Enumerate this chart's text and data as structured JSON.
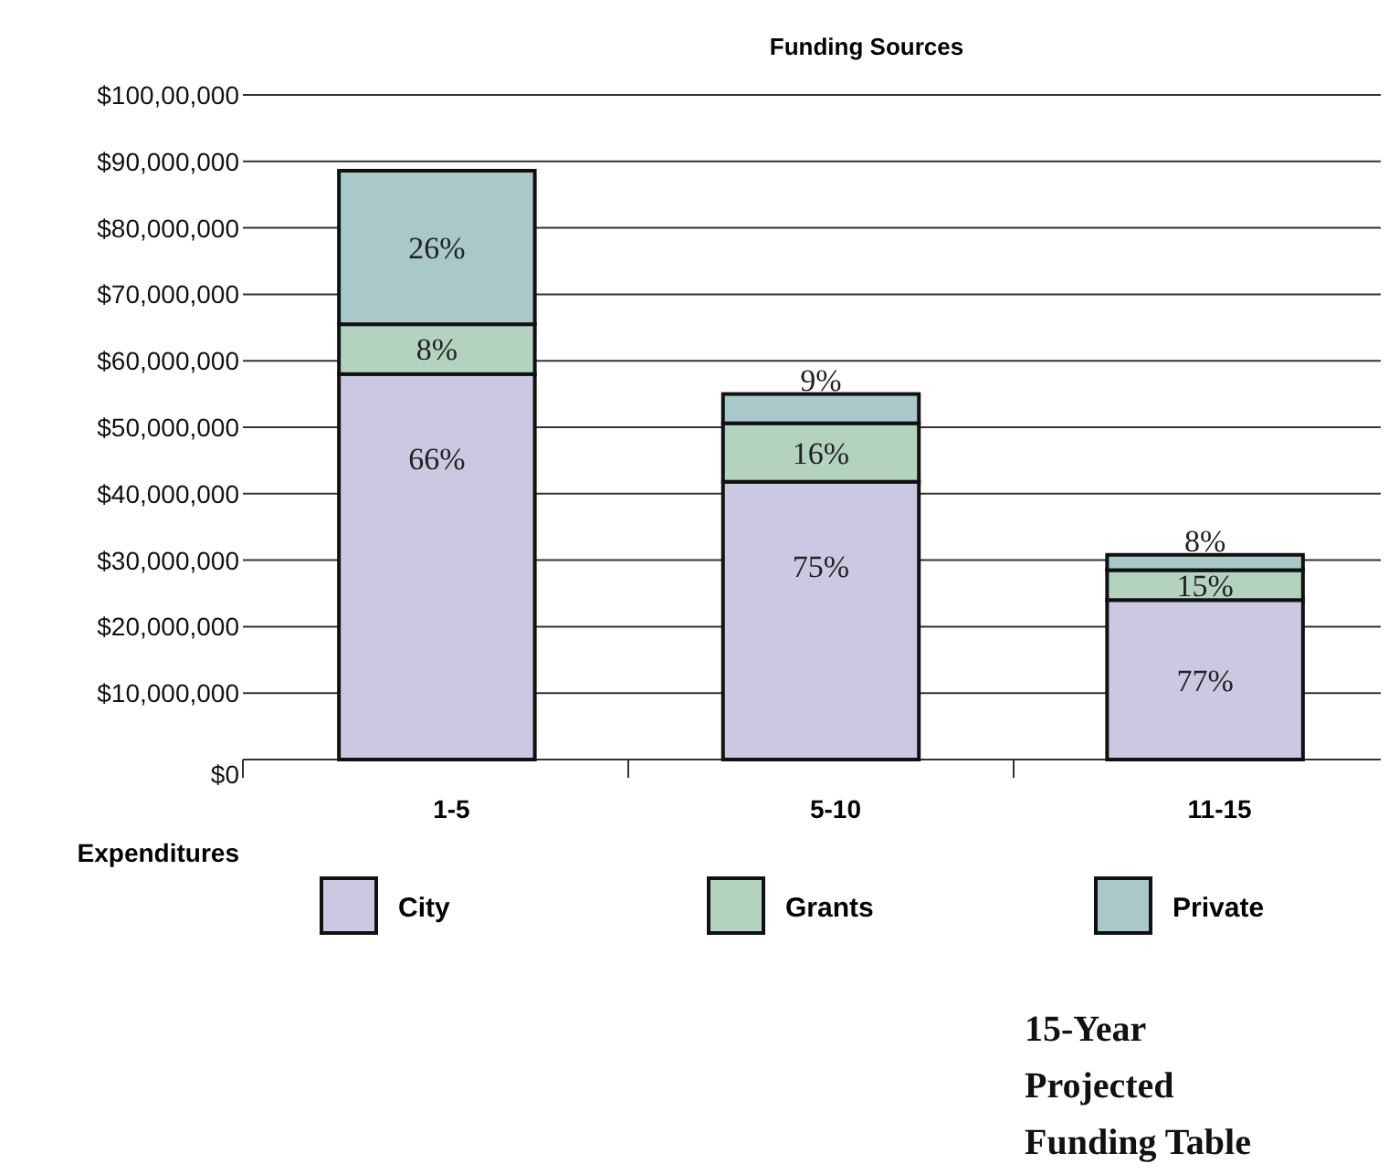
{
  "chart_data": {
    "type": "bar",
    "title": "Funding Sources",
    "xlabel": "Expenditures",
    "stacked": true,
    "categories": [
      "1-5",
      "5-10",
      "11-15"
    ],
    "series": [
      {
        "name": "City",
        "color": "#cbc9e2",
        "values": [
          58000000,
          41800000,
          24000000
        ]
      },
      {
        "name": "Grants",
        "color": "#b3d3c0",
        "values": [
          7500000,
          8800000,
          4500000
        ]
      },
      {
        "name": "Private",
        "color": "#a8c8c9",
        "values": [
          23100000,
          4400000,
          2300000
        ]
      }
    ],
    "ylim": [
      0,
      100000000
    ],
    "yticks": [
      {
        "value": 0,
        "label": "$0"
      },
      {
        "value": 10000000,
        "label": "$10,000,000"
      },
      {
        "value": 20000000,
        "label": "$20,000,000"
      },
      {
        "value": 30000000,
        "label": "$30,000,000"
      },
      {
        "value": 40000000,
        "label": "$40,000,000"
      },
      {
        "value": 50000000,
        "label": "$50,000,000"
      },
      {
        "value": 60000000,
        "label": "$60,000,000"
      },
      {
        "value": 70000000,
        "label": "$70,000,000"
      },
      {
        "value": 80000000,
        "label": "$80,000,000"
      },
      {
        "value": 90000000,
        "label": "$90,000,000"
      },
      {
        "value": 100000000,
        "label": "$100,00,000"
      }
    ],
    "grid": "y",
    "legend": "bottom",
    "annotations": [
      {
        "text": "66%",
        "x": "1-5",
        "y": 58000000
      },
      {
        "text": "8%",
        "x": "1-5",
        "y": 65500000
      },
      {
        "text": "26%",
        "x": "1-5",
        "y": 88600000
      },
      {
        "text": "75%",
        "x": "5-10",
        "y": 41800000
      },
      {
        "text": "16%",
        "x": "5-10",
        "y": 50600000
      },
      {
        "text": "9%",
        "x": "5-10",
        "y": 55000000
      },
      {
        "text": "77%",
        "x": "11-15",
        "y": 24000000
      },
      {
        "text": "15%",
        "x": "11-15",
        "y": 28500000
      },
      {
        "text": "8%",
        "x": "11-15",
        "y": 30800000
      },
      "15-Year Projected Funding Table"
    ]
  }
}
